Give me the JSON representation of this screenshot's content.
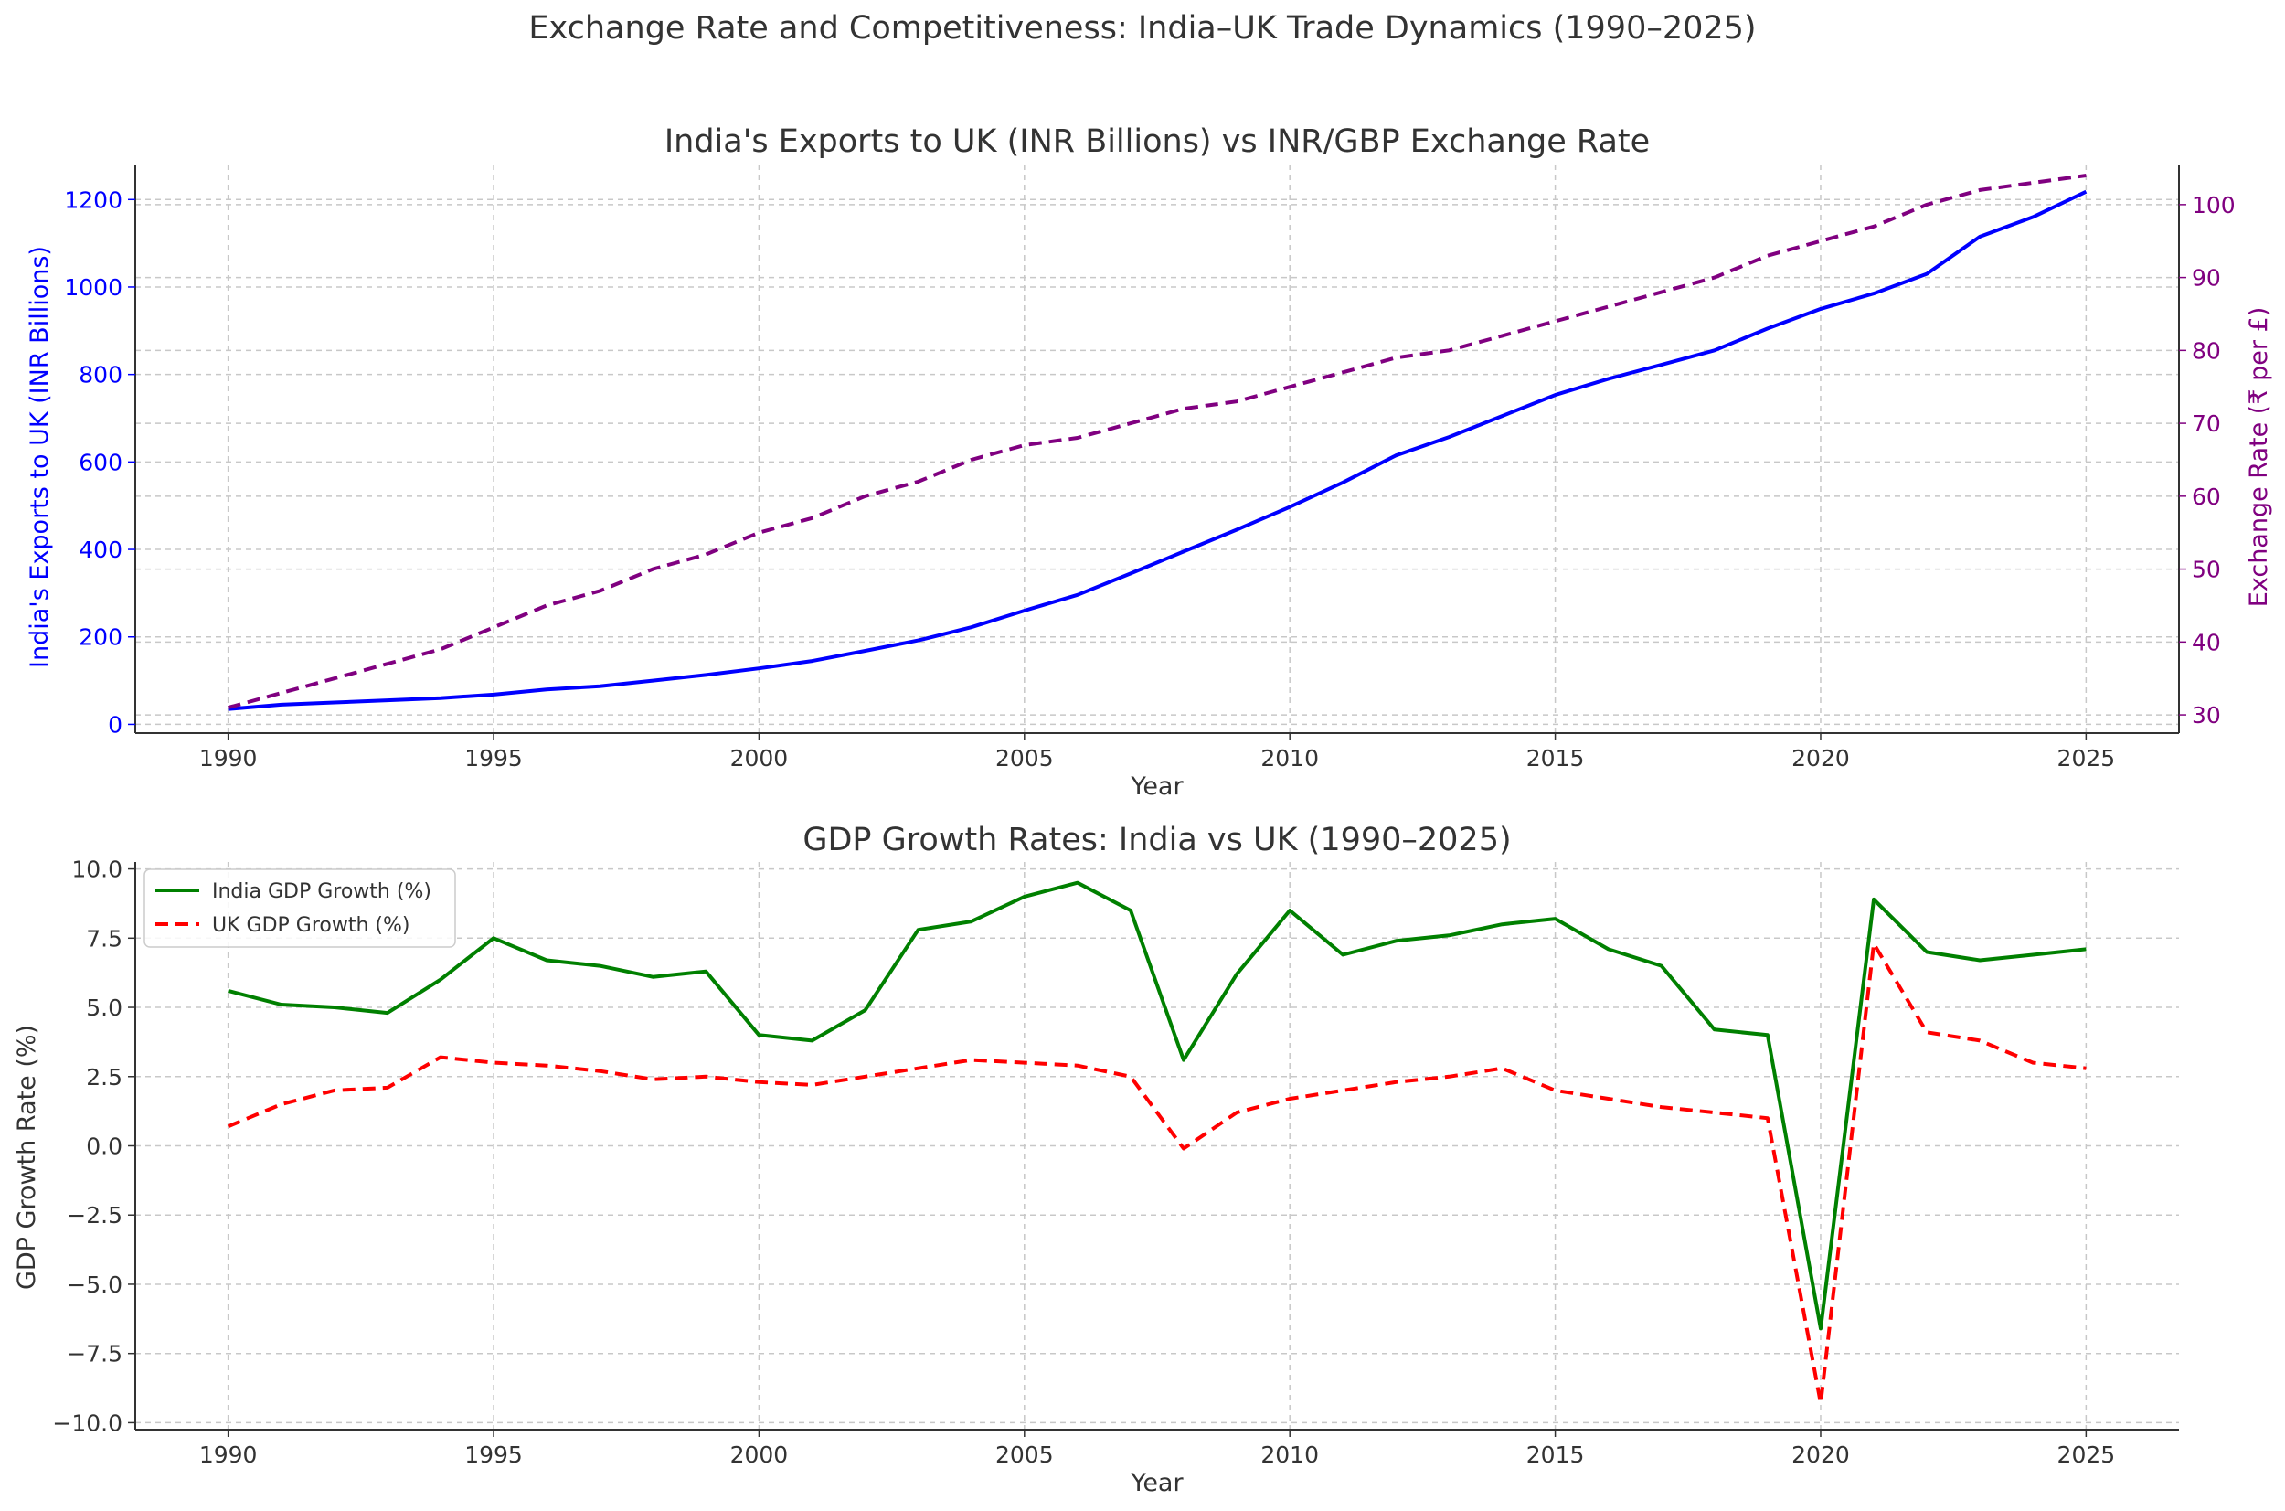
{
  "figure": {
    "title": "Exchange Rate and Competitiveness: India–UK Trade Dynamics (1990–2025)"
  },
  "chart_data": [
    {
      "type": "line",
      "title": "India's Exports to UK (INR Billions) vs INR/GBP Exchange Rate",
      "xlabel": "Year",
      "ylabel": "India's Exports to UK (INR Billions)",
      "y2label": "Exchange Rate (₹ per £)",
      "xlim": [
        1988.25,
        2026.75
      ],
      "ylim": [
        -20,
        1280
      ],
      "y2lim": [
        27.5,
        105.5
      ],
      "xticks": [
        1990,
        1995,
        2000,
        2005,
        2010,
        2015,
        2020,
        2025
      ],
      "yticks": [
        0,
        200,
        400,
        600,
        800,
        1000,
        1200
      ],
      "y2ticks": [
        30,
        40,
        50,
        60,
        70,
        80,
        90,
        100
      ],
      "grid": true,
      "x": [
        1990,
        1991,
        1992,
        1993,
        1994,
        1995,
        1996,
        1997,
        1998,
        1999,
        2000,
        2001,
        2002,
        2003,
        2004,
        2005,
        2006,
        2007,
        2008,
        2009,
        2010,
        2011,
        2012,
        2013,
        2014,
        2015,
        2016,
        2017,
        2018,
        2019,
        2020,
        2021,
        2022,
        2023,
        2024,
        2025
      ],
      "series": [
        {
          "name": "India's Exports to UK (INR Billions)",
          "axis": "left",
          "color": "#0000ff",
          "style": "solid",
          "values": [
            35,
            45,
            50,
            55,
            60,
            68,
            80,
            87,
            100,
            113,
            128,
            145,
            168,
            192,
            222,
            260,
            296,
            345,
            395,
            445,
            497,
            553,
            615,
            657,
            705,
            753,
            790,
            822,
            855,
            905,
            950,
            985,
            1030,
            1115,
            1160,
            1218
          ]
        },
        {
          "name": "Exchange Rate (₹ per £)",
          "axis": "right",
          "color": "#800080",
          "style": "dashed",
          "values": [
            31,
            33,
            35,
            37,
            39,
            42,
            45,
            47,
            50,
            52,
            55,
            57,
            60,
            62,
            65,
            67,
            68,
            70,
            72,
            73,
            75,
            77,
            79,
            80,
            82,
            84,
            86,
            88,
            90,
            93,
            95,
            97,
            100,
            102,
            103,
            104
          ]
        }
      ]
    },
    {
      "type": "line",
      "title": "GDP Growth Rates: India vs UK (1990–2025)",
      "xlabel": "Year",
      "ylabel": "GDP Growth Rate (%)",
      "xlim": [
        1988.25,
        2026.75
      ],
      "ylim": [
        -10.25,
        10.25
      ],
      "xticks": [
        1990,
        1995,
        2000,
        2005,
        2010,
        2015,
        2020,
        2025
      ],
      "yticks": [
        -10,
        -7.5,
        -5,
        -2.5,
        0,
        2.5,
        5,
        7.5,
        10
      ],
      "yticklabels": [
        "−10.0",
        "−7.5",
        "−5.0",
        "−2.5",
        "0.0",
        "2.5",
        "5.0",
        "7.5",
        "10.0"
      ],
      "grid": true,
      "legend": "upper-left",
      "x": [
        1990,
        1991,
        1992,
        1993,
        1994,
        1995,
        1996,
        1997,
        1998,
        1999,
        2000,
        2001,
        2002,
        2003,
        2004,
        2005,
        2006,
        2007,
        2008,
        2009,
        2010,
        2011,
        2012,
        2013,
        2014,
        2015,
        2016,
        2017,
        2018,
        2019,
        2020,
        2021,
        2022,
        2023,
        2024,
        2025
      ],
      "series": [
        {
          "name": "India GDP Growth (%)",
          "color": "#008000",
          "style": "solid",
          "values": [
            5.6,
            5.1,
            5.0,
            4.8,
            6.0,
            7.5,
            6.7,
            6.5,
            6.1,
            6.3,
            4.0,
            3.8,
            4.9,
            7.8,
            8.1,
            9.0,
            9.5,
            8.5,
            3.1,
            6.2,
            8.5,
            6.9,
            7.4,
            7.6,
            8.0,
            8.2,
            7.1,
            6.5,
            4.2,
            4.0,
            -6.6,
            8.9,
            7.0,
            6.7,
            6.9,
            7.1
          ]
        },
        {
          "name": "UK GDP Growth (%)",
          "color": "#ff0000",
          "style": "dashed",
          "values": [
            0.7,
            1.5,
            2.0,
            2.1,
            3.2,
            3.0,
            2.9,
            2.7,
            2.4,
            2.5,
            2.3,
            2.2,
            2.5,
            2.8,
            3.1,
            3.0,
            2.9,
            2.5,
            -0.1,
            1.2,
            1.7,
            2.0,
            2.3,
            2.5,
            2.8,
            2.0,
            1.7,
            1.4,
            1.2,
            1.0,
            -9.3,
            7.3,
            4.1,
            3.8,
            3.0,
            2.8
          ]
        }
      ]
    }
  ]
}
